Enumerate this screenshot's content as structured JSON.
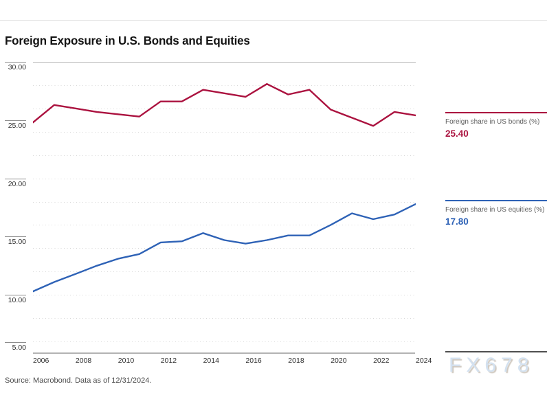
{
  "page": {
    "title": "Foreign Exposure in U.S. Bonds and Equities",
    "source_note": "Source: Macrobond. Data as of 12/31/2024.",
    "watermark": "FX678"
  },
  "chart_data": {
    "type": "line",
    "title": "Foreign Exposure in U.S. Bonds and Equities",
    "x": [
      2006,
      2007,
      2008,
      2009,
      2010,
      2011,
      2012,
      2013,
      2014,
      2015,
      2016,
      2017,
      2018,
      2019,
      2020,
      2021,
      2022,
      2023,
      2024
    ],
    "x_tick_labels": [
      "2006",
      "2008",
      "2010",
      "2012",
      "2014",
      "2016",
      "2018",
      "2020",
      "2022",
      "2024"
    ],
    "x_tick_years": [
      2006,
      2008,
      2010,
      2012,
      2014,
      2016,
      2018,
      2020,
      2022,
      2024
    ],
    "xlim": [
      2006,
      2024
    ],
    "ylim": [
      5,
      30
    ],
    "y_ticks": [
      30,
      25,
      20,
      15,
      10,
      5
    ],
    "y_tick_labels": [
      "30.00",
      "25.00",
      "20.00",
      "15.00",
      "10.00",
      "5.00"
    ],
    "minor_gridlines": [
      28,
      26,
      24,
      22,
      20,
      18,
      16,
      14,
      12,
      10,
      8,
      6
    ],
    "grid": "dotted-horizontal",
    "legend_position": "right",
    "series": [
      {
        "name": "Foreign share in US bonds (%)",
        "color": "#ab123f",
        "last_value_label": "25.40",
        "values": [
          24.8,
          26.3,
          26.0,
          25.7,
          25.5,
          25.3,
          26.6,
          26.6,
          27.6,
          27.3,
          27.0,
          28.1,
          27.2,
          27.6,
          25.9,
          25.2,
          24.5,
          25.7,
          25.4
        ]
      },
      {
        "name": "Foreign share in US equities (%)",
        "color": "#2e62b6",
        "last_value_label": "17.80",
        "values": [
          10.3,
          11.1,
          11.8,
          12.5,
          13.1,
          13.5,
          14.5,
          14.6,
          15.3,
          14.7,
          14.4,
          14.7,
          15.1,
          15.1,
          16.0,
          17.0,
          16.5,
          16.9,
          17.8
        ]
      }
    ]
  }
}
